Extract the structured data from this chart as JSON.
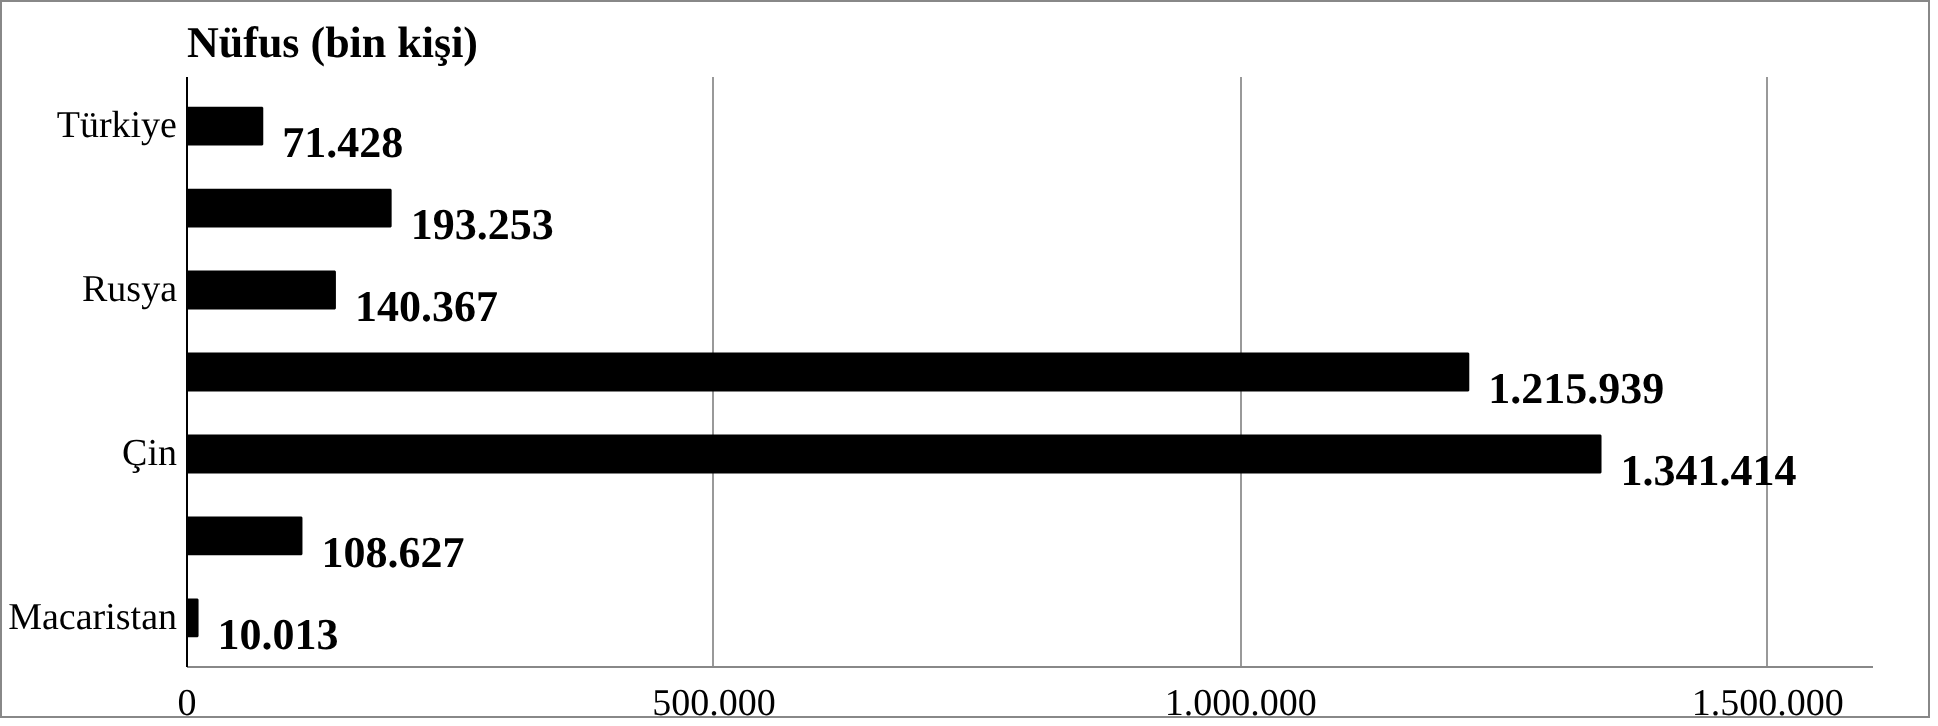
{
  "chart_data": {
    "type": "bar",
    "orientation": "horizontal",
    "title": "Nüfus (bin kişi)",
    "categories": [
      "Türkiye",
      null,
      "Rusya",
      null,
      "Çin",
      null,
      "Macaristan"
    ],
    "values": [
      71428,
      193253,
      140367,
      1215939,
      1341414,
      108627,
      10013
    ],
    "value_labels": [
      "71.428",
      "193.253",
      "140.367",
      "1.215.939",
      "1.341.414",
      "108.627",
      "10.013"
    ],
    "color": "#000000",
    "xlim": [
      0,
      1600000
    ],
    "xticks": [
      0,
      {
        "value": 500000,
        "label": "500.000"
      },
      {
        "value": 1000000,
        "label": "1.000.000"
      },
      {
        "value": 1500000,
        "label": "1.500.000"
      }
    ],
    "grid": "x"
  }
}
